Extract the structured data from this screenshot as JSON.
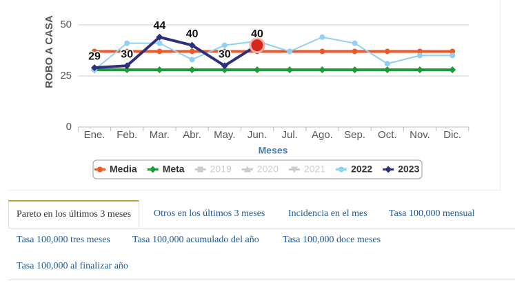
{
  "chart_data": {
    "type": "line",
    "y_axis_label": "ROBO A CASA",
    "x_axis_label": "Meses",
    "categories": [
      "Ene.",
      "Feb.",
      "Mar.",
      "Abr.",
      "May.",
      "Jun.",
      "Jul.",
      "Ago.",
      "Sep.",
      "Oct.",
      "Nov.",
      "Dic."
    ],
    "ylim": [
      0,
      50
    ],
    "yticks": [
      0,
      25,
      50
    ],
    "grid": true,
    "series": [
      {
        "name": "Media",
        "color": "#ec5a2a",
        "marker": "circle",
        "values": [
          37,
          37,
          37,
          37,
          37,
          37,
          37,
          37,
          37,
          37,
          37,
          37
        ]
      },
      {
        "name": "Meta",
        "color": "#1f9a3a",
        "marker": "diamond",
        "values": [
          28,
          28,
          28,
          28,
          28,
          28,
          28,
          28,
          28,
          28,
          28,
          28
        ]
      },
      {
        "name": "2019",
        "color": "#cccccc",
        "marker": "square",
        "hidden": true,
        "values": [
          null,
          null,
          null,
          null,
          null,
          null,
          null,
          null,
          null,
          null,
          null,
          null
        ]
      },
      {
        "name": "2020",
        "color": "#cccccc",
        "marker": "triangle",
        "hidden": true,
        "values": [
          null,
          null,
          null,
          null,
          null,
          null,
          null,
          null,
          null,
          null,
          null,
          null
        ]
      },
      {
        "name": "2021",
        "color": "#cccccc",
        "marker": "triangle-down",
        "hidden": true,
        "values": [
          null,
          null,
          null,
          null,
          null,
          null,
          null,
          null,
          null,
          null,
          null,
          null
        ]
      },
      {
        "name": "2022",
        "color": "#8fd0f3",
        "marker": "circle",
        "values": [
          28,
          41,
          41,
          33,
          40,
          42,
          37,
          44,
          41,
          31,
          35,
          35
        ]
      },
      {
        "name": "2023",
        "color": "#2b2f7c",
        "marker": "diamond",
        "data_labels": true,
        "highlight": 5,
        "values": [
          29,
          30,
          44,
          40,
          30,
          40,
          null,
          null,
          null,
          null,
          null,
          null
        ]
      }
    ]
  },
  "tabs": [
    "Pareto en los últimos 3 meses",
    "Otros en los últimos 3 meses",
    "Incidencia en el mes",
    "Tasa 100,000 mensual",
    "Tasa 100,000 tres meses",
    "Tasa 100,000 acumulado del año",
    "Tasa 100,000 doce meses",
    "Tasa 100,000 al finalizar año"
  ],
  "active_tab": 0
}
